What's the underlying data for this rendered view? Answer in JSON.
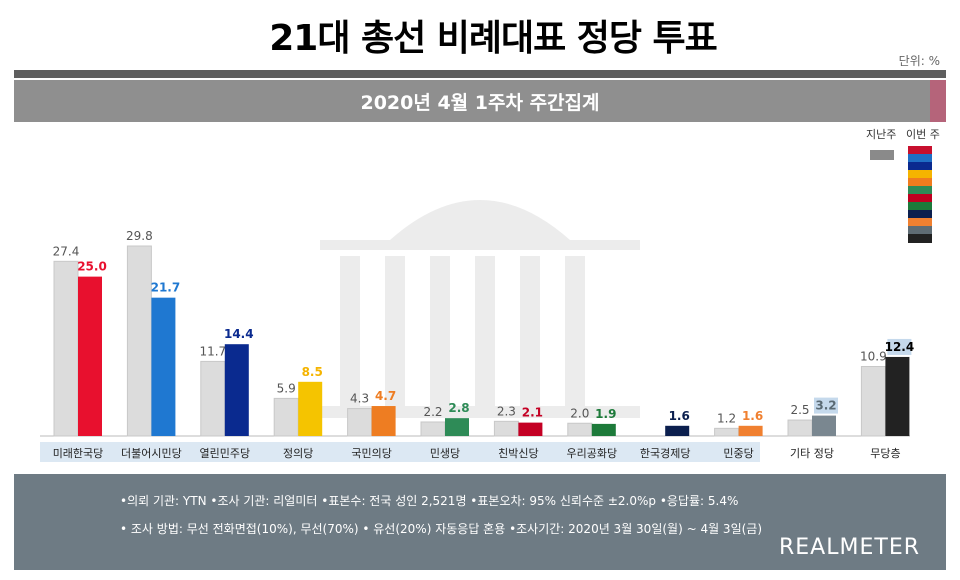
{
  "title": "21대 총선 비례대표 정당 투표",
  "unit": "단위: %",
  "subtitle": "2020년 4월 1주차 주간집계",
  "legend": {
    "last_week": "지난주",
    "this_week": "이번 주",
    "swatches": [
      "#c8102e",
      "#1f6fc5",
      "#0a2a8f",
      "#f5b400",
      "#f07c1e",
      "#2e8b57",
      "#c00020",
      "#1d7a3a",
      "#0b1f4e",
      "#f08030",
      "#5f6c74",
      "#222222"
    ]
  },
  "footer": {
    "line1": "•의뢰 기관: YTN •조사 기관: 리얼미터 •표본수: 전국 성인 2,521명 •표본오차: 95% 신뢰수준 ±2.0%p •응답률: 5.4%",
    "line2": "• 조사 방법: 무선 전화면접(10%), 무선(70%) • 유선(20%) 자동응답 혼용  •조사기간: 2020년 3월 30일(월) ~ 4월 3일(금)",
    "brand": "REALMETER"
  },
  "chart_data": {
    "type": "bar",
    "title": "21대 총선 비례대표 정당 투표",
    "subtitle": "2020년 4월 1주차 주간집계",
    "categories": [
      "미래한국당",
      "더불어시민당",
      "열린민주당",
      "정의당",
      "국민의당",
      "민생당",
      "친박신당",
      "우리공화당",
      "한국경제당",
      "민중당",
      "기타 정당",
      "무당층"
    ],
    "ylim": [
      0,
      32
    ],
    "series": [
      {
        "name": "지난주",
        "values": [
          27.4,
          29.8,
          11.7,
          5.9,
          4.3,
          2.2,
          2.3,
          2.0,
          null,
          1.2,
          2.5,
          10.9
        ]
      },
      {
        "name": "이번 주",
        "values": [
          25.0,
          21.7,
          14.4,
          8.5,
          4.7,
          2.8,
          2.1,
          1.9,
          1.6,
          1.6,
          3.2,
          12.4
        ]
      }
    ],
    "last_labels": [
      "27.4",
      "29.8",
      "11.7",
      "5.9",
      "4.3",
      "2.2",
      "2.3",
      "2.0",
      "",
      "1.2",
      "2.5",
      "10.9"
    ],
    "this_labels": [
      "25.0",
      "21.7",
      "14.4",
      "8.5",
      "4.7",
      "2.8",
      "2.1",
      "1.9",
      "1.6",
      "1.6",
      "3.2",
      "12.4"
    ],
    "colors": [
      "#e8102e",
      "#1f78d1",
      "#0a2a8f",
      "#f5c400",
      "#ee7d22",
      "#2e8b57",
      "#c40024",
      "#1d7a3a",
      "#0b1f4e",
      "#f08030",
      "#7a8790",
      "#222222"
    ],
    "label_colors": [
      "#e8102e",
      "#1f78d1",
      "#0a2a8f",
      "#f5b400",
      "#ee7d22",
      "#2e8b57",
      "#c40024",
      "#1d7a3a",
      "#0b1f4e",
      "#f08030",
      "#5a6a74",
      "#000000"
    ],
    "last_color": "#dcdcdc",
    "grid": false
  }
}
